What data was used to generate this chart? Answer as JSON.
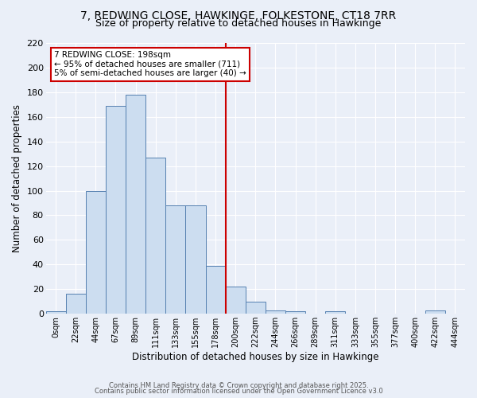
{
  "title_line1": "7, REDWING CLOSE, HAWKINGE, FOLKESTONE, CT18 7RR",
  "title_line2": "Size of property relative to detached houses in Hawkinge",
  "xlabel": "Distribution of detached houses by size in Hawkinge",
  "ylabel": "Number of detached properties",
  "bar_labels": [
    "0sqm",
    "22sqm",
    "44sqm",
    "67sqm",
    "89sqm",
    "111sqm",
    "133sqm",
    "155sqm",
    "178sqm",
    "200sqm",
    "222sqm",
    "244sqm",
    "266sqm",
    "289sqm",
    "311sqm",
    "333sqm",
    "355sqm",
    "377sqm",
    "400sqm",
    "422sqm",
    "444sqm"
  ],
  "bar_values": [
    2,
    16,
    100,
    169,
    178,
    127,
    88,
    88,
    39,
    22,
    10,
    3,
    2,
    0,
    2,
    0,
    0,
    0,
    0,
    3,
    0
  ],
  "bar_color": "#ccddf0",
  "bar_edge_color": "#5580b0",
  "vline_x_index": 9,
  "vline_color": "#cc0000",
  "annotation_title": "7 REDWING CLOSE: 198sqm",
  "annotation_line1": "← 95% of detached houses are smaller (711)",
  "annotation_line2": "5% of semi-detached houses are larger (40) →",
  "annotation_box_edgecolor": "#cc0000",
  "ylim": [
    0,
    220
  ],
  "yticks": [
    0,
    20,
    40,
    60,
    80,
    100,
    120,
    140,
    160,
    180,
    200,
    220
  ],
  "footer_line1": "Contains HM Land Registry data © Crown copyright and database right 2025.",
  "footer_line2": "Contains public sector information licensed under the Open Government Licence v3.0",
  "bg_color": "#eaeff8",
  "plot_bg_color": "#eaeff8",
  "grid_color": "#ffffff",
  "title1_fontsize": 10,
  "title2_fontsize": 9
}
